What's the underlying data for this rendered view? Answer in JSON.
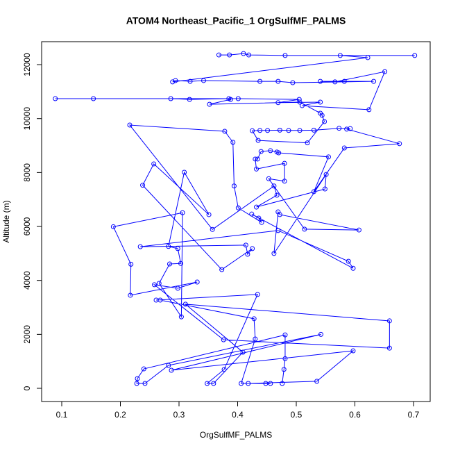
{
  "chart_data": {
    "type": "line",
    "title": "ATOM4 Northeast_Pacific_1 OrgSulfMF_PALMS",
    "x_label": "OrgSulfMF_PALMS",
    "y_label": "Altitude (m)",
    "color": "#0000ff",
    "markers": true,
    "xlim": [
      0.0657,
      0.7284
    ],
    "ylim": [
      -489,
      12851
    ],
    "xticks": [
      0.1,
      0.2,
      0.3,
      0.4,
      0.5,
      0.6,
      0.7
    ],
    "yticks": [
      0,
      2000,
      4000,
      6000,
      8000,
      10000,
      12000
    ],
    "x": [
      0.476,
      0.479,
      0.481,
      0.481,
      0.24,
      0.229,
      0.228,
      0.242,
      0.282,
      0.542,
      0.287,
      0.597,
      0.535,
      0.418,
      0.456,
      0.448,
      0.406,
      0.43,
      0.428,
      0.268,
      0.261,
      0.434,
      0.377,
      0.348,
      0.359,
      0.409,
      0.311,
      0.659,
      0.659,
      0.376,
      0.258,
      0.298,
      0.331,
      0.217,
      0.218,
      0.188,
      0.306,
      0.304,
      0.266,
      0.284,
      0.303,
      0.298,
      0.282,
      0.309,
      0.351,
      0.257,
      0.238,
      0.373,
      0.425,
      0.417,
      0.414,
      0.234,
      0.469,
      0.589,
      0.597,
      0.424,
      0.436,
      0.441,
      0.401,
      0.394,
      0.392,
      0.378,
      0.216,
      0.357,
      0.462,
      0.467,
      0.432,
      0.549,
      0.551,
      0.462,
      0.469,
      0.472,
      0.607,
      0.514,
      0.453,
      0.48,
      0.48,
      0.432,
      0.43,
      0.434,
      0.44,
      0.456,
      0.467,
      0.47,
      0.555,
      0.53,
      0.582,
      0.676,
      0.586,
      0.592,
      0.573,
      0.53,
      0.506,
      0.487,
      0.472,
      0.451,
      0.438,
      0.425,
      0.435,
      0.519,
      0.548,
      0.544,
      0.541,
      0.506,
      0.352,
      0.388,
      0.385,
      0.318,
      0.286,
      0.154,
      0.089,
      0.401,
      0.505,
      0.469,
      0.541,
      0.51,
      0.624,
      0.651,
      0.566,
      0.541,
      0.582,
      0.632,
      0.494,
      0.469,
      0.438,
      0.342,
      0.319,
      0.294,
      0.289,
      0.622,
      0.575,
      0.702,
      0.481,
      0.419,
      0.41,
      0.386,
      0.368
    ],
    "values": [
      180,
      700,
      1100,
      1980,
      720,
      360,
      180,
      180,
      850,
      2000,
      670,
      1390,
      260,
      180,
      180,
      180,
      180,
      1830,
      2580,
      3270,
      3270,
      3480,
      700,
      180,
      180,
      1340,
      3120,
      2500,
      1490,
      1800,
      3840,
      3710,
      3940,
      3450,
      4600,
      5990,
      6510,
      2650,
      3890,
      4610,
      4630,
      5180,
      5260,
      8010,
      6440,
      8320,
      7530,
      4400,
      5180,
      4970,
      5310,
      5250,
      5850,
      4710,
      4450,
      6460,
      6310,
      6150,
      6690,
      7500,
      9120,
      9530,
      9760,
      5890,
      7500,
      7160,
      6720,
      7390,
      7930,
      5000,
      6540,
      6440,
      5870,
      5900,
      7770,
      7680,
      8340,
      8130,
      8500,
      8500,
      8780,
      8810,
      8760,
      8730,
      8580,
      7290,
      8910,
      9070,
      9610,
      9630,
      9640,
      9570,
      9560,
      9560,
      9570,
      9560,
      9560,
      9550,
      9190,
      9100,
      9890,
      10120,
      10200,
      10610,
      10530,
      10710,
      10740,
      10710,
      10740,
      10740,
      10740,
      10740,
      10710,
      10590,
      10610,
      10480,
      10330,
      11740,
      11360,
      11380,
      11380,
      11380,
      11330,
      11380,
      11380,
      11410,
      11380,
      11410,
      11360,
      12260,
      12340,
      12340,
      12340,
      12360,
      12410,
      12360,
      12360
    ]
  }
}
